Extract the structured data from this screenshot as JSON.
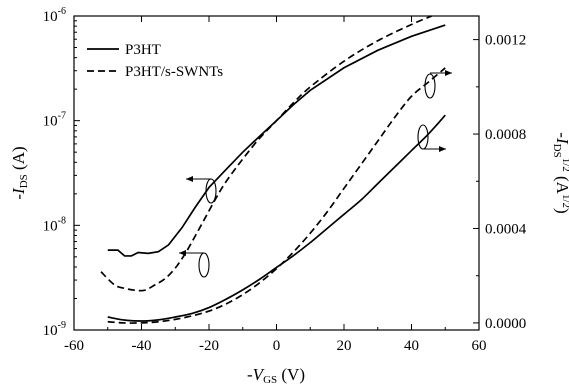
{
  "chart_data": {
    "type": "line",
    "title": "",
    "xlabel": {
      "prefix": "-",
      "main": "V",
      "sub": "GS",
      "unit": " (V)"
    },
    "ylabel_left": {
      "prefix": "-",
      "main": "I",
      "sub": "DS",
      "unit": " (A)"
    },
    "ylabel_right": {
      "prefix": "-",
      "main": "I",
      "sub": "DS",
      "sup": "1/2",
      "unit_open": " (A",
      "unit_close": ")"
    },
    "xlim": [
      -60,
      60
    ],
    "ylim_left_log10": [
      -9,
      -6
    ],
    "ylim_right": [
      -3e-05,
      0.0013
    ],
    "x_ticks": [
      -60,
      -40,
      -20,
      0,
      20,
      40,
      60
    ],
    "x_tick_labels": [
      "-60",
      "-40",
      "-20",
      "0",
      "20",
      "40",
      "60"
    ],
    "y_left_ticks_exp": [
      -9,
      -8,
      -7,
      -6
    ],
    "y_left_tick_base": "10",
    "y_left_tick_exps": [
      "-9",
      "-8",
      "-7",
      "-6"
    ],
    "y_right_ticks": [
      0,
      0.0004,
      0.0008,
      0.0012
    ],
    "y_right_tick_labels": [
      "0.0000",
      "0.0004",
      "0.0008",
      "0.0012"
    ],
    "legend_position": "top-left",
    "legend": [
      {
        "label": "P3HT",
        "style": "solid"
      },
      {
        "label": "P3HT/s-SWNTs",
        "style": "dashed"
      }
    ],
    "series": [
      {
        "name": "P3HT",
        "axis": "left",
        "style": "solid",
        "x": [
          -50,
          -47,
          -45,
          -43,
          -41,
          -38,
          -35,
          -32,
          -28,
          -24,
          -20,
          -15,
          -10,
          -5,
          0,
          5,
          10,
          20,
          30,
          40,
          50
        ],
        "y": [
          5.8e-09,
          5.8e-09,
          5.1e-09,
          5.1e-09,
          5.5e-09,
          5.4e-09,
          5.6e-09,
          6.5e-09,
          9.5e-09,
          1.5e-08,
          2.3e-08,
          3.4e-08,
          5e-08,
          7.1e-08,
          1e-07,
          1.42e-07,
          1.95e-07,
          3.2e-07,
          4.7e-07,
          6.4e-07,
          8.2e-07
        ]
      },
      {
        "name": "P3HT/s-SWNTs",
        "axis": "left",
        "style": "dashed",
        "x": [
          -52,
          -48,
          -45,
          -42,
          -39,
          -36,
          -33,
          -30,
          -27,
          -24,
          -21,
          -18,
          -15,
          -10,
          -5,
          0,
          5,
          10,
          20,
          30,
          40,
          46
        ],
        "y": [
          3.6e-09,
          2.7e-09,
          2.5e-09,
          2.4e-09,
          2.4e-09,
          2.7e-09,
          3.1e-09,
          3.9e-09,
          5.4e-09,
          8e-09,
          1.2e-08,
          1.8e-08,
          2.6e-08,
          4.3e-08,
          6.8e-08,
          1e-07,
          1.48e-07,
          2.1e-07,
          3.7e-07,
          5.8e-07,
          8.3e-07,
          1e-06
        ]
      },
      {
        "name": "P3HT",
        "axis": "right",
        "style": "solid",
        "x": [
          -50,
          -45,
          -40,
          -35,
          -30,
          -25,
          -20,
          -15,
          -10,
          -5,
          0,
          5,
          10,
          15,
          20,
          25,
          30,
          35,
          40,
          45,
          50
        ],
        "y": [
          2.5e-05,
          1.2e-05,
          8e-06,
          1.3e-05,
          2.5e-05,
          4e-05,
          6.5e-05,
          0.0001,
          0.00014,
          0.000185,
          0.000235,
          0.000285,
          0.00034,
          0.0004,
          0.00046,
          0.00052,
          0.00059,
          0.00066,
          0.00073,
          0.0008,
          0.00088
        ]
      },
      {
        "name": "P3HT/s-SWNTs",
        "axis": "right",
        "style": "dashed",
        "x": [
          -50,
          -45,
          -40,
          -35,
          -30,
          -25,
          -20,
          -15,
          -10,
          -5,
          0,
          5,
          10,
          15,
          20,
          25,
          30,
          35,
          40,
          45,
          50
        ],
        "y": [
          5e-06,
          0.0,
          0.0,
          5e-06,
          1.5e-05,
          3e-05,
          5e-05,
          8e-05,
          0.00012,
          0.00017,
          0.00023,
          0.0003,
          0.00038,
          0.00047,
          0.00057,
          0.00067,
          0.00077,
          0.00087,
          0.00096,
          0.00102,
          0.00108
        ]
      }
    ]
  }
}
